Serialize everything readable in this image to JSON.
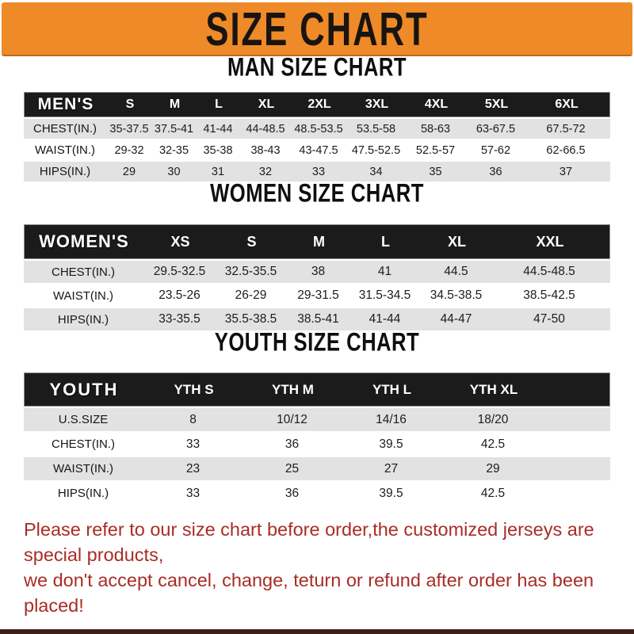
{
  "banner": {
    "title": "SIZE CHART"
  },
  "sections": [
    {
      "id": "men",
      "heading": "MAN SIZE CHART",
      "header_label": "MEN'S",
      "sizes": [
        "S",
        "M",
        "L",
        "XL",
        "2XL",
        "3XL",
        "4XL",
        "5XL",
        "6XL"
      ],
      "rows": [
        {
          "label": "CHEST(IN.)",
          "values": [
            "35-37.5",
            "37.5-41",
            "41-44",
            "44-48.5",
            "48.5-53.5",
            "53.5-58",
            "58-63",
            "63-67.5",
            "67.5-72"
          ]
        },
        {
          "label": "WAIST(IN.)",
          "values": [
            "29-32",
            "32-35",
            "35-38",
            "38-43",
            "43-47.5",
            "47.5-52.5",
            "52.5-57",
            "57-62",
            "62-66.5"
          ]
        },
        {
          "label": "HIPS(IN.)",
          "values": [
            "29",
            "30",
            "31",
            "32",
            "33",
            "34",
            "35",
            "36",
            "37"
          ]
        }
      ]
    },
    {
      "id": "women",
      "heading": "WOMEN SIZE CHART",
      "header_label": "WOMEN'S",
      "sizes": [
        "XS",
        "S",
        "M",
        "L",
        "XL",
        "XXL"
      ],
      "rows": [
        {
          "label": "CHEST(IN.)",
          "values": [
            "29.5-32.5",
            "32.5-35.5",
            "38",
            "41",
            "44.5",
            "44.5-48.5"
          ]
        },
        {
          "label": "WAIST(IN.)",
          "values": [
            "23.5-26",
            "26-29",
            "29-31.5",
            "31.5-34.5",
            "34.5-38.5",
            "38.5-42.5"
          ]
        },
        {
          "label": "HIPS(IN.)",
          "values": [
            "33-35.5",
            "35.5-38.5",
            "38.5-41",
            "41-44",
            "44-47",
            "47-50"
          ]
        }
      ]
    },
    {
      "id": "youth",
      "heading": "YOUTH SIZE CHART",
      "header_label": "YOUTH",
      "sizes": [
        "YTH S",
        "YTH M",
        "YTH L",
        "YTH XL"
      ],
      "rows": [
        {
          "label": "U.S.SIZE",
          "values": [
            "8",
            "10/12",
            "14/16",
            "18/20"
          ]
        },
        {
          "label": "CHEST(IN.)",
          "values": [
            "33",
            "36",
            "39.5",
            "42.5"
          ]
        },
        {
          "label": "WAIST(IN.)",
          "values": [
            "23",
            "25",
            "27",
            "29"
          ]
        },
        {
          "label": "HIPS(IN.)",
          "values": [
            "33",
            "36",
            "39.5",
            "42.5"
          ]
        }
      ]
    }
  ],
  "footer": {
    "line1": "Please refer to our size chart before order,the customized jerseys are special products,",
    "line2": "we don't accept cancel, change, teturn or refund after order has been placed!"
  },
  "colors": {
    "banner_bg": "#EE8A28",
    "bar_bg": "#1B1B1B",
    "row_gray": "#E2E2E2",
    "footer_color": "#A92C26",
    "strip_color": "#3E1E1A"
  }
}
